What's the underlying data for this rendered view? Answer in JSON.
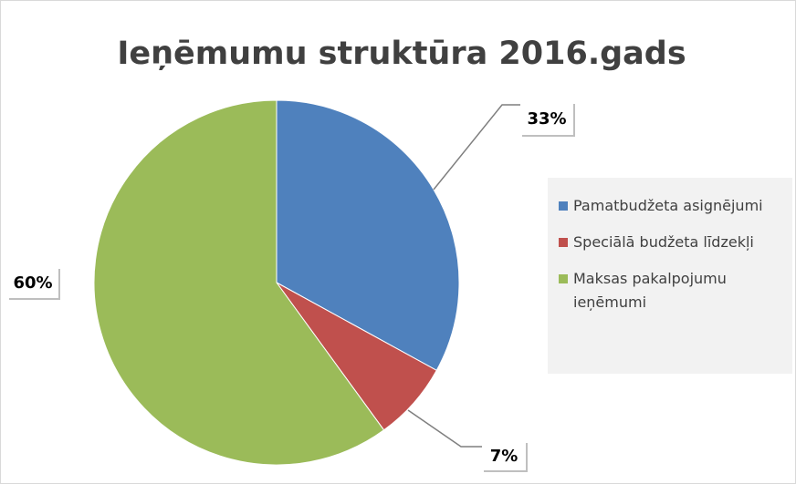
{
  "chart_data": {
    "type": "pie",
    "title": "Ieņēmumu struktūra 2016.gads",
    "categories": [
      "Pamatbudžeta asignējumi",
      "Speciālā budžeta līdzekļi",
      "Maksas pakalpojumu ieņēmumi"
    ],
    "values": [
      33,
      7,
      60
    ],
    "value_labels": [
      "33%",
      "7%",
      "60%"
    ],
    "colors": [
      "#4f81bd",
      "#c0504d",
      "#9bbb59"
    ],
    "legend": "right"
  }
}
